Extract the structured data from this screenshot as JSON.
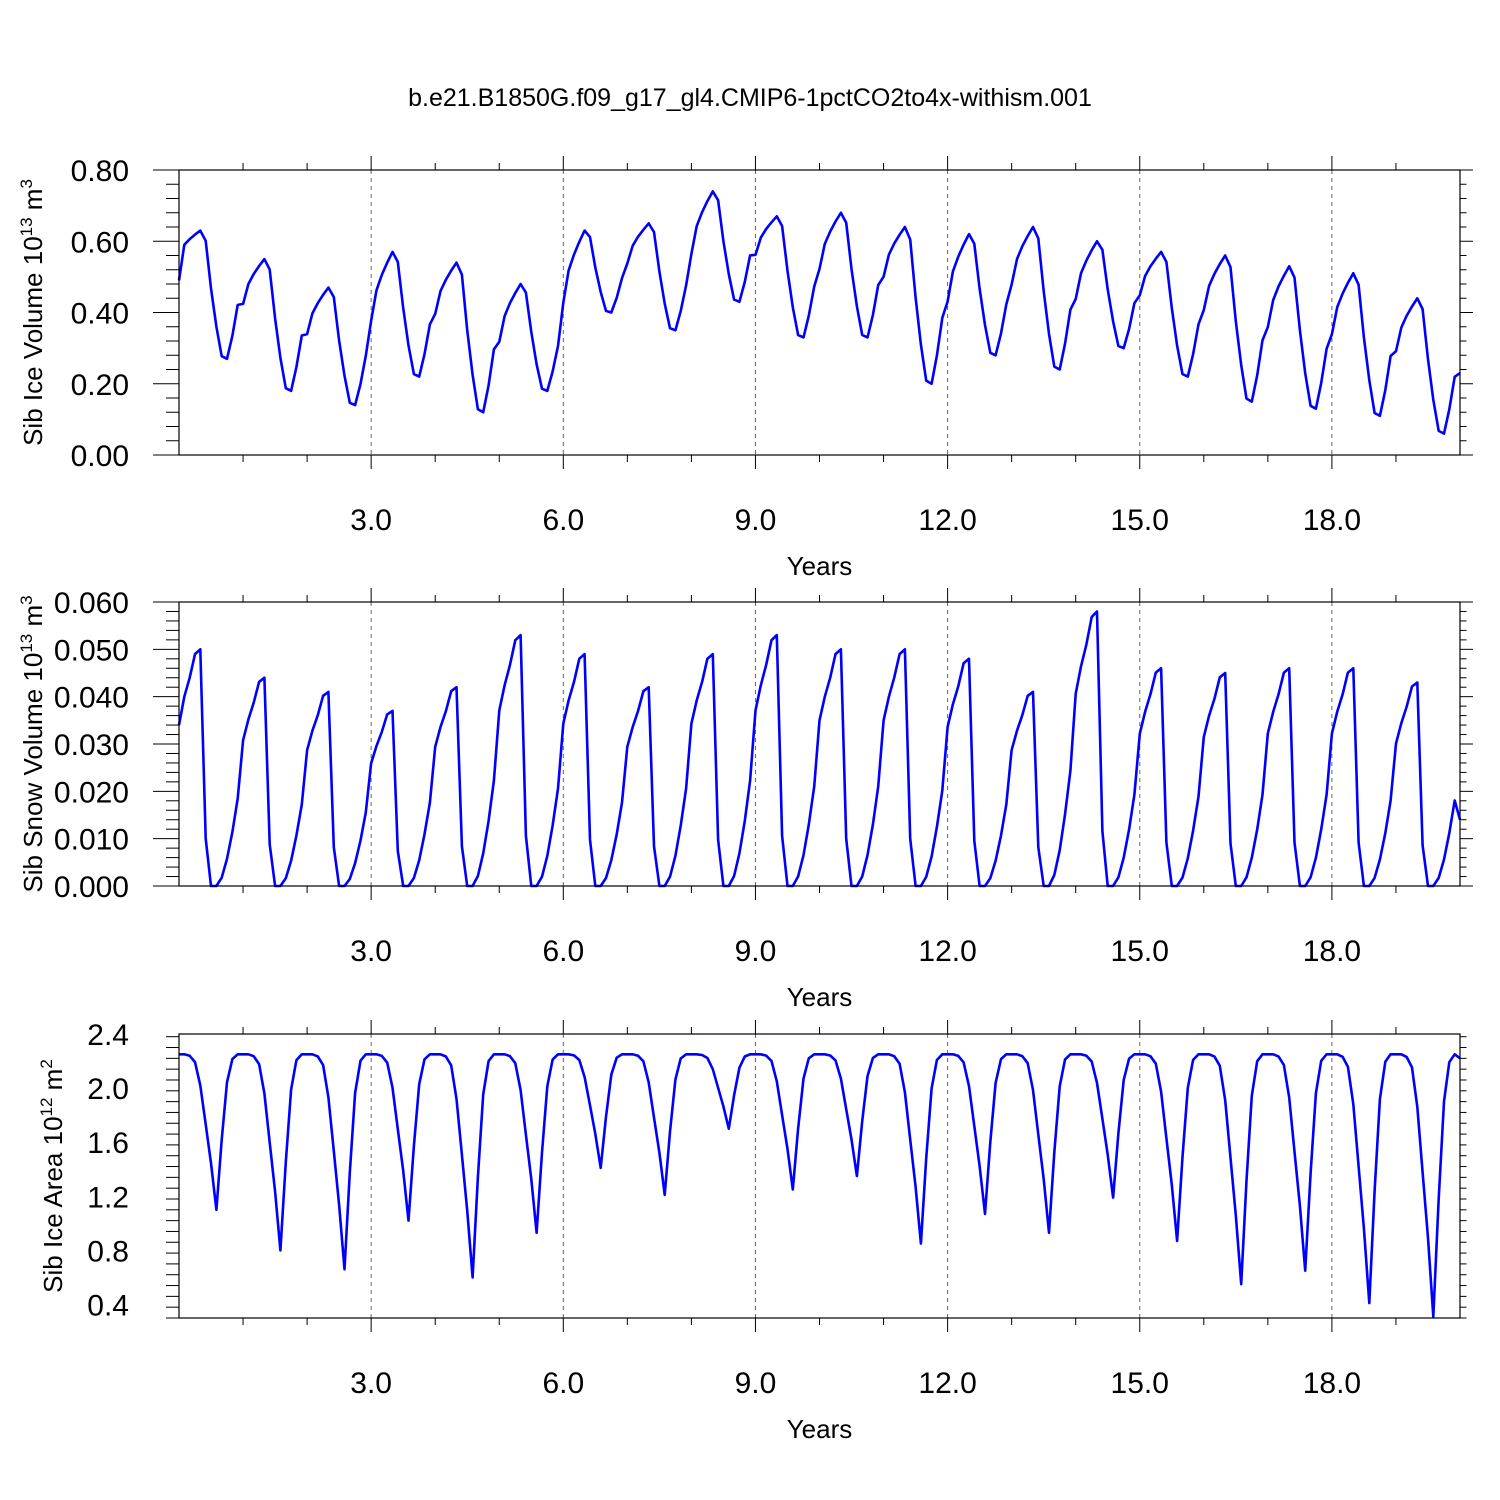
{
  "figure": {
    "title": "b.e21.B1850G.f09_g17_gl4.CMIP6-1pctCO2to4x-withism.001",
    "line_color": "#0000ff"
  },
  "chart_data": [
    {
      "type": "line",
      "title": "",
      "ylabel": "Sib Ice Volume 10",
      "ylabel_exp": "13",
      "ylabel_unit": " m",
      "ylabel_unit_exp": "3",
      "xlabel": "Years",
      "xlim": [
        0.0,
        20.0
      ],
      "ylim": [
        0.0,
        0.8
      ],
      "yticks": [
        0.0,
        0.2,
        0.4,
        0.6,
        0.8
      ],
      "ytick_labels": [
        "0.00",
        "0.20",
        "0.40",
        "0.60",
        "0.80"
      ],
      "xticks": [
        3,
        6,
        9,
        12,
        15,
        18
      ],
      "xtick_labels": [
        "3.0",
        "6.0",
        "9.0",
        "12.0",
        "15.0",
        "18.0"
      ],
      "grid": "x-dashed",
      "series": [
        {
          "color": "#0000ff",
          "mins": [
            0.27,
            0.18,
            0.14,
            0.22,
            0.12,
            0.18,
            0.4,
            0.35,
            0.43,
            0.33,
            0.33,
            0.2,
            0.28,
            0.24,
            0.3,
            0.22,
            0.15,
            0.13,
            0.11,
            0.06
          ],
          "maxs": [
            0.63,
            0.55,
            0.47,
            0.57,
            0.54,
            0.48,
            0.63,
            0.65,
            0.74,
            0.67,
            0.68,
            0.64,
            0.62,
            0.64,
            0.6,
            0.57,
            0.56,
            0.53,
            0.51,
            0.44
          ],
          "start": 0.49,
          "end": 0.23
        }
      ]
    },
    {
      "type": "line",
      "title": "",
      "ylabel": "Sib Snow Volume 10",
      "ylabel_exp": "13",
      "ylabel_unit": " m",
      "ylabel_unit_exp": "3",
      "xlabel": "Years",
      "xlim": [
        0.0,
        20.0
      ],
      "ylim": [
        0.0,
        0.06
      ],
      "yticks": [
        0.0,
        0.01,
        0.02,
        0.03,
        0.04,
        0.05,
        0.06
      ],
      "ytick_labels": [
        "0.000",
        "0.010",
        "0.020",
        "0.030",
        "0.040",
        "0.050",
        "0.060"
      ],
      "xticks": [
        3,
        6,
        9,
        12,
        15,
        18
      ],
      "xtick_labels": [
        "3.0",
        "6.0",
        "9.0",
        "12.0",
        "15.0",
        "18.0"
      ],
      "grid": "x-dashed",
      "series": [
        {
          "color": "#0000ff",
          "maxs": [
            0.05,
            0.044,
            0.041,
            0.037,
            0.042,
            0.053,
            0.049,
            0.042,
            0.049,
            0.053,
            0.05,
            0.05,
            0.048,
            0.041,
            0.058,
            0.046,
            0.045,
            0.046,
            0.046,
            0.043
          ],
          "start": 0.034,
          "end": 0.014
        }
      ]
    },
    {
      "type": "line",
      "title": "",
      "ylabel": "Sib Ice Area 10",
      "ylabel_exp": "12",
      "ylabel_unit": " m",
      "ylabel_unit_exp": "2",
      "xlabel": "Years",
      "xlim": [
        0.0,
        20.0
      ],
      "ylim": [
        0.3,
        2.4
      ],
      "yticks": [
        0.4,
        0.8,
        1.2,
        1.6,
        2.0,
        2.4
      ],
      "ytick_labels": [
        "0.4",
        "0.8",
        "1.2",
        "1.6",
        "2.0",
        "2.4"
      ],
      "xticks": [
        3,
        6,
        9,
        12,
        15,
        18
      ],
      "xtick_labels": [
        "3.0",
        "6.0",
        "9.0",
        "12.0",
        "15.0",
        "18.0"
      ],
      "grid": "x-dashed",
      "series": [
        {
          "color": "#0000ff",
          "plateau": 2.25,
          "mins": [
            1.1,
            0.8,
            0.66,
            1.02,
            0.6,
            0.93,
            1.41,
            1.21,
            1.7,
            1.25,
            1.35,
            0.85,
            1.07,
            0.93,
            1.19,
            0.87,
            0.55,
            0.65,
            0.41,
            0.31
          ],
          "end": 2.22
        }
      ]
    }
  ]
}
